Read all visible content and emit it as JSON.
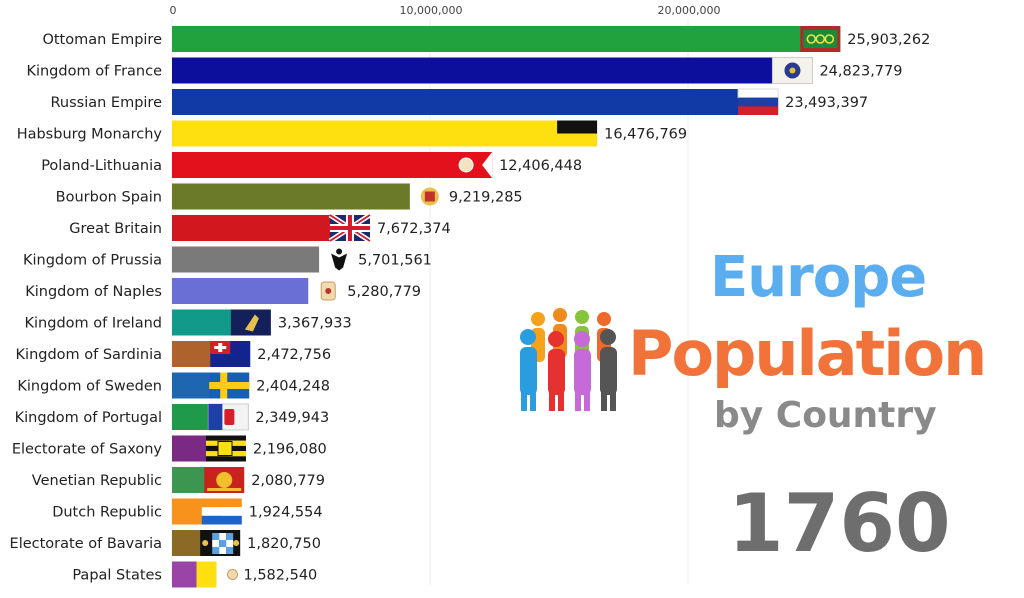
{
  "chart_data": {
    "type": "bar",
    "orientation": "horizontal",
    "title": "Europe Population",
    "subtitle": "by Country",
    "year": "1760",
    "xlim": [
      0,
      26000000
    ],
    "ticks": [
      {
        "value": 0,
        "label": "0"
      },
      {
        "value": 10000000,
        "label": "10,000,000"
      },
      {
        "value": 20000000,
        "label": "20,000,000"
      }
    ],
    "grid": true,
    "categories": [
      "Ottoman Empire",
      "Kingdom of France",
      "Russian Empire",
      "Habsburg Monarchy",
      "Poland-Lithuania",
      "Bourbon Spain",
      "Great Britain",
      "Kingdom of Prussia",
      "Kingdom of Naples",
      "Kingdom of Ireland",
      "Kingdom of Sardinia",
      "Kingdom of Sweden",
      "Kingdom of Portugal",
      "Electorate of Saxony",
      "Venetian Republic",
      "Dutch Republic",
      "Electorate of Bavaria",
      "Papal States"
    ],
    "values": [
      25903262,
      24823779,
      23493397,
      16476769,
      12406448,
      9219285,
      7672374,
      5701561,
      5280779,
      3367933,
      2472756,
      2404248,
      2349943,
      2196080,
      2080779,
      1924554,
      1820750,
      1582540
    ],
    "value_labels": [
      "25,903,262",
      "24,823,779",
      "23,493,397",
      "16,476,769",
      "12,406,448",
      "9,219,285",
      "7,672,374",
      "5,701,561",
      "5,280,779",
      "3,367,933",
      "2,472,756",
      "2,404,248",
      "2,349,943",
      "2,196,080",
      "2,080,779",
      "1,924,554",
      "1,820,750",
      "1,582,540"
    ],
    "colors": [
      "#22a23e",
      "#0c0e9c",
      "#123aa6",
      "#fedf10",
      "#e3111b",
      "#6b7a29",
      "#d3171f",
      "#7a7a7a",
      "#6a6fd6",
      "#11998a",
      "#b0622c",
      "#1e66b0",
      "#1f9a4a",
      "#7a2a83",
      "#3c9650",
      "#f7931c",
      "#8a6a24",
      "#9a44a8"
    ],
    "flags": [
      "ottoman-flag",
      "france-royal-flag",
      "russia-flag",
      "habsburg-flag",
      "poland-lithuania-flag",
      "spain-coat-of-arms",
      "union-jack-flag",
      "prussia-eagle-emblem",
      "naples-coat-of-arms",
      "ireland-harp-flag",
      "sardinia-flag",
      "sweden-flag",
      "portugal-flag",
      "saxony-flag",
      "venice-flag",
      "dutch-flag",
      "bavaria-flag",
      "papal-states-flag"
    ]
  },
  "heading": {
    "line1": "Europe",
    "line2": "Population",
    "line3": "by Country",
    "year": "1760"
  },
  "colors": {
    "title_blue": "#5aaef0",
    "title_orange": "#f2733a",
    "subtitle_gray": "#8a8a8a",
    "year_gray": "#6e6e6e"
  }
}
